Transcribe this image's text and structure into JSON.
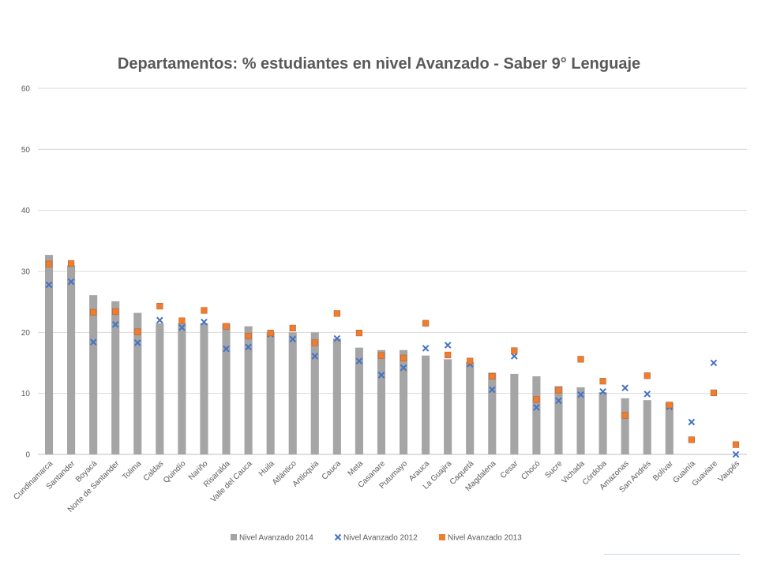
{
  "chart_data": {
    "type": "bar",
    "title": "Departamentos: % estudiantes en nivel Avanzado - Saber 9° Lenguaje",
    "ylim": [
      0,
      60
    ],
    "yticks": [
      0,
      10,
      20,
      30,
      40,
      50,
      60
    ],
    "grid": true,
    "legend_position": "bottom",
    "categories": [
      "Cundinamarca",
      "Santander",
      "Boyacá",
      "Norte de Santander",
      "Tolima",
      "Caldas",
      "Quindío",
      "Nariño",
      "Risaralda",
      "Valle del Cauca",
      "Huila",
      "Atlántico",
      "Antioquia",
      "Cauca",
      "Meta",
      "Casanare",
      "Putumayo",
      "Arauca",
      "La Guajira",
      "Caquetá",
      "Magdalena",
      "Cesar",
      "Chocó",
      "Sucre",
      "Vichada",
      "Córdoba",
      "Amazonas",
      "San Andrés",
      "Bolívar",
      "Guainía",
      "Guaviare",
      "Vaupés"
    ],
    "series": [
      {
        "name": "Nivel Avanzado 2014",
        "kind": "bar",
        "color": "#a5a5a5",
        "values": [
          32.7,
          31.0,
          26.1,
          25.1,
          23.2,
          21.5,
          21.5,
          21.5,
          21.5,
          21.0,
          20.0,
          20.0,
          20.0,
          19.0,
          17.5,
          17.1,
          17.1,
          16.2,
          15.6,
          15.1,
          13.4,
          13.2,
          12.8,
          11.2,
          11.0,
          10.2,
          9.2,
          8.9,
          8.5,
          null,
          null,
          null
        ]
      },
      {
        "name": "Nivel Avanzado 2012",
        "kind": "x",
        "color": "#4472c4",
        "values": [
          27.8,
          28.3,
          18.4,
          21.3,
          18.3,
          22.0,
          20.8,
          21.7,
          17.3,
          17.6,
          19.7,
          18.9,
          16.1,
          19.0,
          15.3,
          13.0,
          14.2,
          17.4,
          17.9,
          14.8,
          10.6,
          16.1,
          7.7,
          8.8,
          9.8,
          10.3,
          10.9,
          9.9,
          7.8,
          5.3,
          15.0,
          0.0
        ]
      },
      {
        "name": "Nivel Avanzado 2013",
        "kind": "square",
        "color": "#ed7d31",
        "values": [
          31.2,
          31.3,
          23.3,
          23.4,
          20.1,
          24.3,
          21.9,
          23.6,
          21.0,
          19.4,
          19.9,
          20.7,
          18.3,
          23.1,
          19.9,
          16.2,
          15.8,
          21.5,
          16.3,
          15.3,
          12.8,
          17.0,
          9.0,
          10.5,
          15.6,
          12.0,
          6.4,
          12.9,
          8.1,
          2.4,
          10.1,
          1.6
        ]
      }
    ]
  }
}
